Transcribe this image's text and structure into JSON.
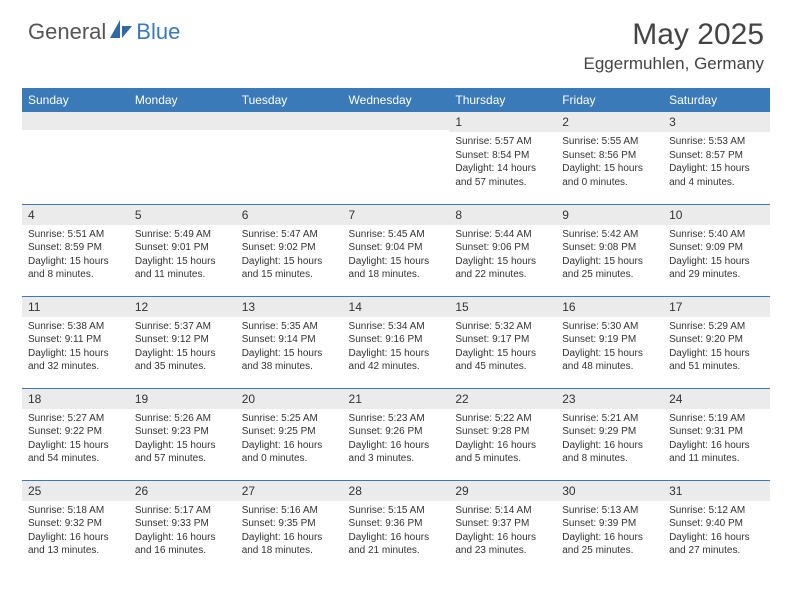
{
  "logo": {
    "general": "General",
    "blue": "Blue"
  },
  "title": "May 2025",
  "location": "Eggermuhlen, Germany",
  "colors": {
    "header_bg": "#3a7ab8",
    "header_text": "#ffffff",
    "daynum_bg": "#ebebeb",
    "border": "#3a7ab8",
    "body_text": "#333333"
  },
  "weekdays": [
    "Sunday",
    "Monday",
    "Tuesday",
    "Wednesday",
    "Thursday",
    "Friday",
    "Saturday"
  ],
  "weeks": [
    [
      {
        "n": "",
        "sr": "",
        "ss": "",
        "dl": ""
      },
      {
        "n": "",
        "sr": "",
        "ss": "",
        "dl": ""
      },
      {
        "n": "",
        "sr": "",
        "ss": "",
        "dl": ""
      },
      {
        "n": "",
        "sr": "",
        "ss": "",
        "dl": ""
      },
      {
        "n": "1",
        "sr": "Sunrise: 5:57 AM",
        "ss": "Sunset: 8:54 PM",
        "dl": "Daylight: 14 hours and 57 minutes."
      },
      {
        "n": "2",
        "sr": "Sunrise: 5:55 AM",
        "ss": "Sunset: 8:56 PM",
        "dl": "Daylight: 15 hours and 0 minutes."
      },
      {
        "n": "3",
        "sr": "Sunrise: 5:53 AM",
        "ss": "Sunset: 8:57 PM",
        "dl": "Daylight: 15 hours and 4 minutes."
      }
    ],
    [
      {
        "n": "4",
        "sr": "Sunrise: 5:51 AM",
        "ss": "Sunset: 8:59 PM",
        "dl": "Daylight: 15 hours and 8 minutes."
      },
      {
        "n": "5",
        "sr": "Sunrise: 5:49 AM",
        "ss": "Sunset: 9:01 PM",
        "dl": "Daylight: 15 hours and 11 minutes."
      },
      {
        "n": "6",
        "sr": "Sunrise: 5:47 AM",
        "ss": "Sunset: 9:02 PM",
        "dl": "Daylight: 15 hours and 15 minutes."
      },
      {
        "n": "7",
        "sr": "Sunrise: 5:45 AM",
        "ss": "Sunset: 9:04 PM",
        "dl": "Daylight: 15 hours and 18 minutes."
      },
      {
        "n": "8",
        "sr": "Sunrise: 5:44 AM",
        "ss": "Sunset: 9:06 PM",
        "dl": "Daylight: 15 hours and 22 minutes."
      },
      {
        "n": "9",
        "sr": "Sunrise: 5:42 AM",
        "ss": "Sunset: 9:08 PM",
        "dl": "Daylight: 15 hours and 25 minutes."
      },
      {
        "n": "10",
        "sr": "Sunrise: 5:40 AM",
        "ss": "Sunset: 9:09 PM",
        "dl": "Daylight: 15 hours and 29 minutes."
      }
    ],
    [
      {
        "n": "11",
        "sr": "Sunrise: 5:38 AM",
        "ss": "Sunset: 9:11 PM",
        "dl": "Daylight: 15 hours and 32 minutes."
      },
      {
        "n": "12",
        "sr": "Sunrise: 5:37 AM",
        "ss": "Sunset: 9:12 PM",
        "dl": "Daylight: 15 hours and 35 minutes."
      },
      {
        "n": "13",
        "sr": "Sunrise: 5:35 AM",
        "ss": "Sunset: 9:14 PM",
        "dl": "Daylight: 15 hours and 38 minutes."
      },
      {
        "n": "14",
        "sr": "Sunrise: 5:34 AM",
        "ss": "Sunset: 9:16 PM",
        "dl": "Daylight: 15 hours and 42 minutes."
      },
      {
        "n": "15",
        "sr": "Sunrise: 5:32 AM",
        "ss": "Sunset: 9:17 PM",
        "dl": "Daylight: 15 hours and 45 minutes."
      },
      {
        "n": "16",
        "sr": "Sunrise: 5:30 AM",
        "ss": "Sunset: 9:19 PM",
        "dl": "Daylight: 15 hours and 48 minutes."
      },
      {
        "n": "17",
        "sr": "Sunrise: 5:29 AM",
        "ss": "Sunset: 9:20 PM",
        "dl": "Daylight: 15 hours and 51 minutes."
      }
    ],
    [
      {
        "n": "18",
        "sr": "Sunrise: 5:27 AM",
        "ss": "Sunset: 9:22 PM",
        "dl": "Daylight: 15 hours and 54 minutes."
      },
      {
        "n": "19",
        "sr": "Sunrise: 5:26 AM",
        "ss": "Sunset: 9:23 PM",
        "dl": "Daylight: 15 hours and 57 minutes."
      },
      {
        "n": "20",
        "sr": "Sunrise: 5:25 AM",
        "ss": "Sunset: 9:25 PM",
        "dl": "Daylight: 16 hours and 0 minutes."
      },
      {
        "n": "21",
        "sr": "Sunrise: 5:23 AM",
        "ss": "Sunset: 9:26 PM",
        "dl": "Daylight: 16 hours and 3 minutes."
      },
      {
        "n": "22",
        "sr": "Sunrise: 5:22 AM",
        "ss": "Sunset: 9:28 PM",
        "dl": "Daylight: 16 hours and 5 minutes."
      },
      {
        "n": "23",
        "sr": "Sunrise: 5:21 AM",
        "ss": "Sunset: 9:29 PM",
        "dl": "Daylight: 16 hours and 8 minutes."
      },
      {
        "n": "24",
        "sr": "Sunrise: 5:19 AM",
        "ss": "Sunset: 9:31 PM",
        "dl": "Daylight: 16 hours and 11 minutes."
      }
    ],
    [
      {
        "n": "25",
        "sr": "Sunrise: 5:18 AM",
        "ss": "Sunset: 9:32 PM",
        "dl": "Daylight: 16 hours and 13 minutes."
      },
      {
        "n": "26",
        "sr": "Sunrise: 5:17 AM",
        "ss": "Sunset: 9:33 PM",
        "dl": "Daylight: 16 hours and 16 minutes."
      },
      {
        "n": "27",
        "sr": "Sunrise: 5:16 AM",
        "ss": "Sunset: 9:35 PM",
        "dl": "Daylight: 16 hours and 18 minutes."
      },
      {
        "n": "28",
        "sr": "Sunrise: 5:15 AM",
        "ss": "Sunset: 9:36 PM",
        "dl": "Daylight: 16 hours and 21 minutes."
      },
      {
        "n": "29",
        "sr": "Sunrise: 5:14 AM",
        "ss": "Sunset: 9:37 PM",
        "dl": "Daylight: 16 hours and 23 minutes."
      },
      {
        "n": "30",
        "sr": "Sunrise: 5:13 AM",
        "ss": "Sunset: 9:39 PM",
        "dl": "Daylight: 16 hours and 25 minutes."
      },
      {
        "n": "31",
        "sr": "Sunrise: 5:12 AM",
        "ss": "Sunset: 9:40 PM",
        "dl": "Daylight: 16 hours and 27 minutes."
      }
    ]
  ]
}
